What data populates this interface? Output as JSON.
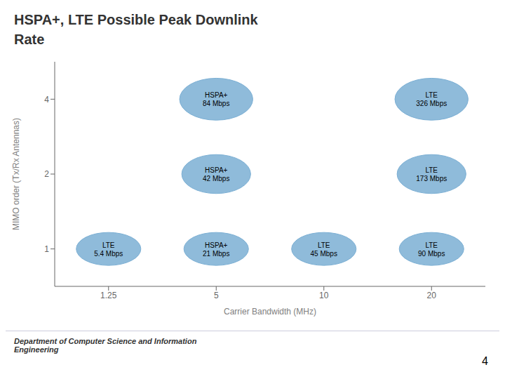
{
  "chart_data": {
    "type": "scatter",
    "title": "HSPA+, LTE Possible Peak Downlink\nRate",
    "x_label": "Carrier Bandwidth (MHz)",
    "y_label": "MIMO order (Tx/Rx Antennas)",
    "annotations": [
      "Department of Computer Science and Information\nEngineering",
      "4"
    ],
    "categories": [
      "1.25",
      "5",
      "10",
      "20"
    ],
    "y_categories": [
      "1",
      "2",
      "4"
    ],
    "color": "#7BAFD4",
    "grid": false,
    "points": [
      {
        "x": "1.25",
        "y": "1",
        "label": "LTE\n5.4 Mbps",
        "rx": 0.3,
        "ry": 0.22
      },
      {
        "x": "5",
        "y": "1",
        "label": "HSPA+\n21 Mbps",
        "rx": 0.3,
        "ry": 0.22
      },
      {
        "x": "10",
        "y": "1",
        "label": "LTE\n45 Mbps",
        "rx": 0.3,
        "ry": 0.22
      },
      {
        "x": "20",
        "y": "1",
        "label": "LTE\n90 Mbps",
        "rx": 0.3,
        "ry": 0.22
      },
      {
        "x": "5",
        "y": "2",
        "label": "HSPA+\n42 Mbps",
        "rx": 0.32,
        "ry": 0.26
      },
      {
        "x": "20",
        "y": "2",
        "label": "LTE\n173 Mbps",
        "rx": 0.32,
        "ry": 0.26
      },
      {
        "x": "5",
        "y": "4",
        "label": "HSPA+\n84 Mbps",
        "rx": 0.34,
        "ry": 0.28
      },
      {
        "x": "20",
        "y": "4",
        "label": "LTE\n326 Mbps",
        "rx": 0.34,
        "ry": 0.28
      }
    ]
  }
}
